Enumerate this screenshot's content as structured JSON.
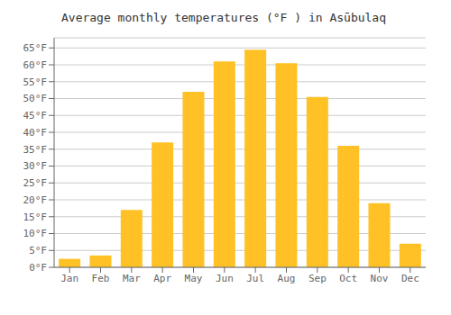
{
  "chart_data": {
    "type": "bar",
    "title": "Average monthly temperatures (°F ) in Asūbulaq",
    "categories": [
      "Jan",
      "Feb",
      "Mar",
      "Apr",
      "May",
      "Jun",
      "Jul",
      "Aug",
      "Sep",
      "Oct",
      "Nov",
      "Dec"
    ],
    "values": [
      2.5,
      3.5,
      17,
      37,
      52,
      61,
      64.5,
      60.5,
      50.5,
      36,
      19,
      7
    ],
    "color": "#FFC125",
    "ylim": [
      0,
      68
    ],
    "yticks": [
      {
        "value": 0,
        "label": "0°F"
      },
      {
        "value": 5,
        "label": "5°F"
      },
      {
        "value": 10,
        "label": "10°F"
      },
      {
        "value": 15,
        "label": "15°F"
      },
      {
        "value": 20,
        "label": "20°F"
      },
      {
        "value": 25,
        "label": "25°F"
      },
      {
        "value": 30,
        "label": "30°F"
      },
      {
        "value": 35,
        "label": "35°F"
      },
      {
        "value": 40,
        "label": "40°F"
      },
      {
        "value": 45,
        "label": "45°F"
      },
      {
        "value": 50,
        "label": "50°F"
      },
      {
        "value": 55,
        "label": "55°F"
      },
      {
        "value": 60,
        "label": "60°F"
      },
      {
        "value": 65,
        "label": "65°F"
      }
    ],
    "grid": true
  }
}
